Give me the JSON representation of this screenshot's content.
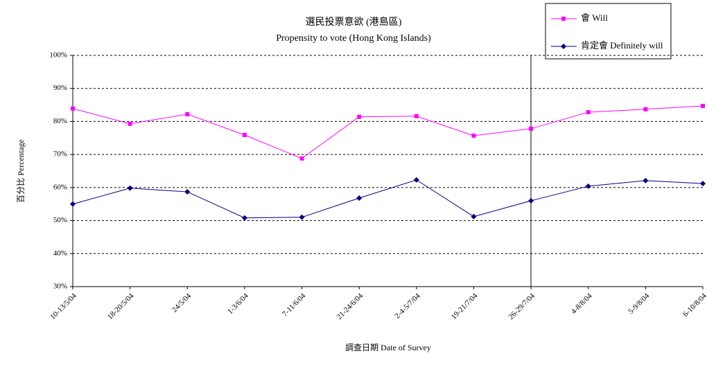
{
  "chart_data": {
    "type": "line",
    "title": "選民投票意欲 (港島區)",
    "subtitle": "Propensity to vote (Hong Kong Islands)",
    "y_label": "百分比 Percentage",
    "x_label": "調查日期 Date of Survey",
    "categories": [
      "10-13/5/04",
      "18-20/5/04",
      "24/5/04",
      "1-3/6/04",
      "7-11/6/04",
      "21-24/6/04",
      "2-4-5/7/04",
      "19-21/7/04",
      "26-29/7/04",
      "4-8/8/04",
      "5-9/8/04",
      "6-10/8/04"
    ],
    "series": [
      {
        "name": "會 Will",
        "color": "#ff00ff",
        "marker": "square",
        "values": [
          83.9,
          79.3,
          82.2,
          75.9,
          68.8,
          81.4,
          81.6,
          75.7,
          77.8,
          82.8,
          83.7,
          84.7
        ]
      },
      {
        "name": "肯定會 Definitely will",
        "color": "#000080",
        "marker": "diamond",
        "values": [
          55,
          59.8,
          58.7,
          50.8,
          51,
          56.8,
          62.3,
          51.2,
          56,
          60.4,
          62.1,
          61.2
        ]
      }
    ],
    "ylim": [
      30,
      100
    ],
    "yticks": [
      {
        "value": 30,
        "label": "30%"
      },
      {
        "value": 40,
        "label": "40%"
      },
      {
        "value": 50,
        "label": "50%"
      },
      {
        "value": 60,
        "label": "60%"
      },
      {
        "value": 70,
        "label": "70%"
      },
      {
        "value": 80,
        "label": "80%"
      },
      {
        "value": 90,
        "label": "90%"
      },
      {
        "value": 100,
        "label": "100%"
      }
    ],
    "grid": true,
    "legend": "top-right"
  }
}
